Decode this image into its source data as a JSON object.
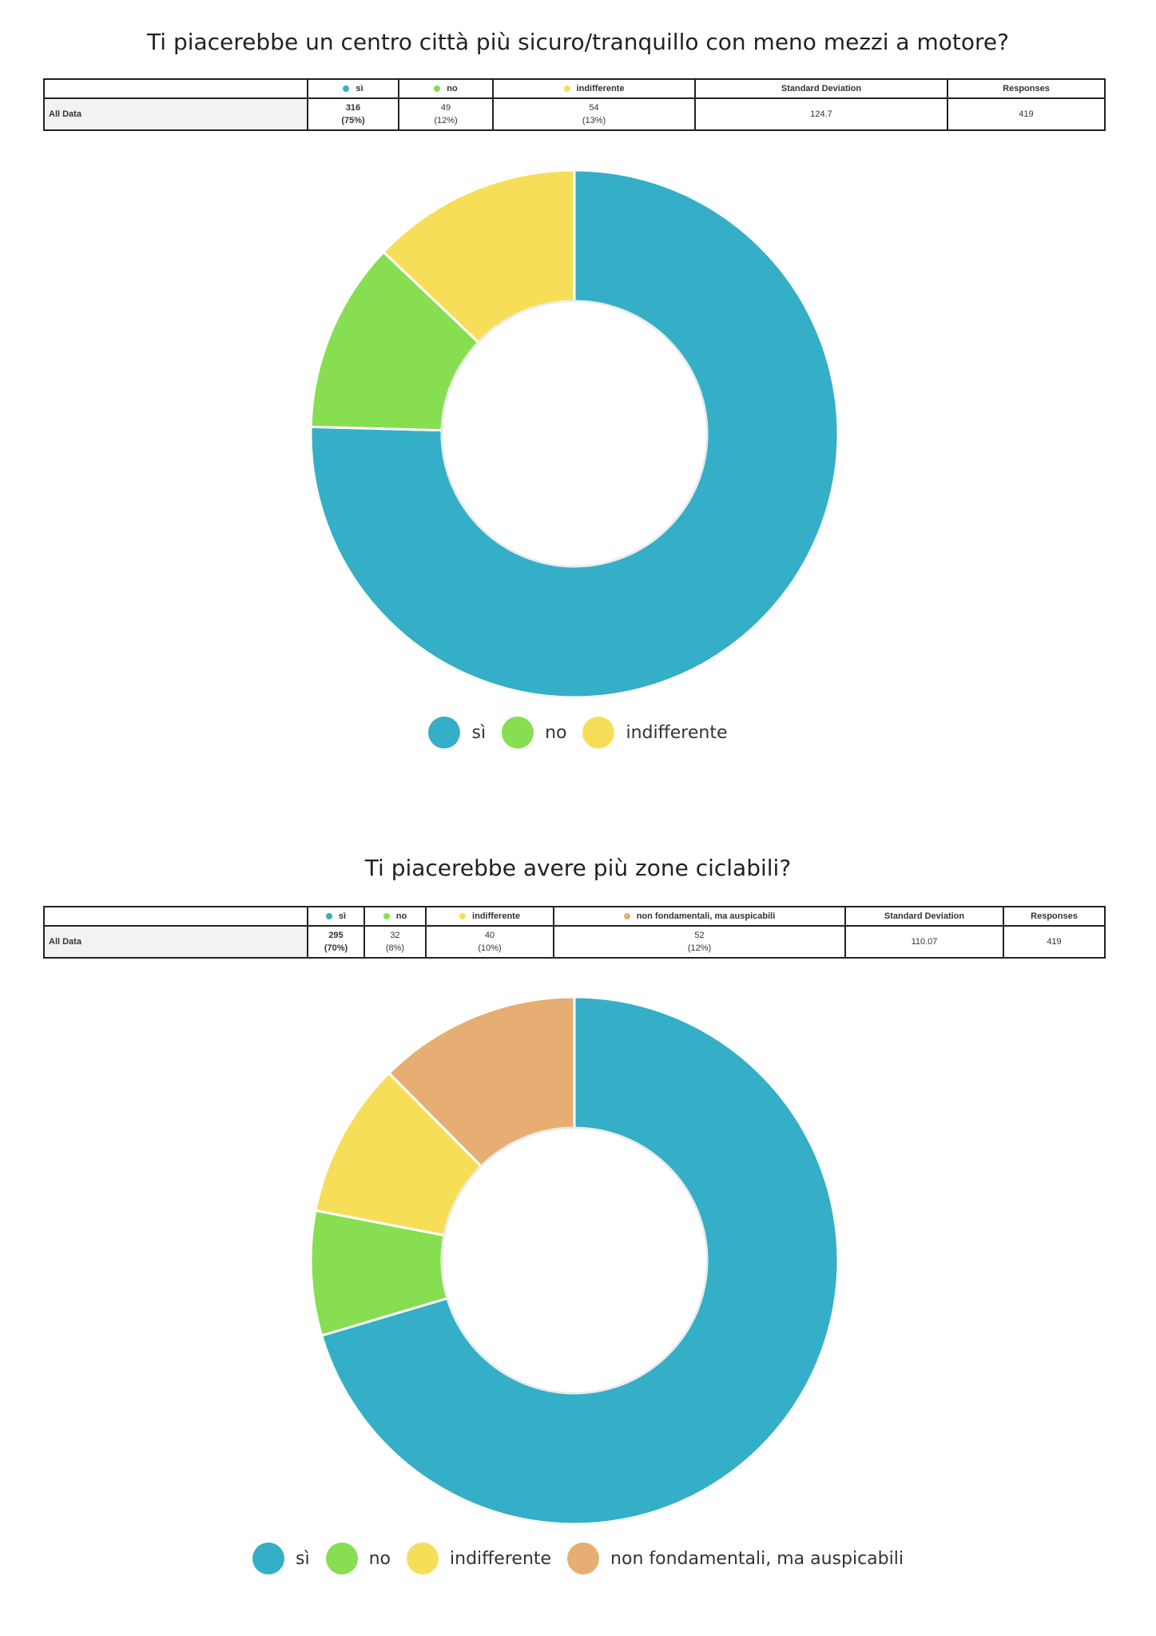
{
  "colors": {
    "si": "#34afc7",
    "no": "#86de50",
    "indifferente": "#f7de58",
    "non_fondamentali": "#e6ae73"
  },
  "chart_data": [
    {
      "type": "pie",
      "title": "Ti piacerebbe un centro città più sicuro/tranquillo con meno mezzi a motore?",
      "row_label": "All Data",
      "categories": [
        "sì",
        "no",
        "indifferente"
      ],
      "values": [
        316,
        49,
        54
      ],
      "percentages": [
        "(75%)",
        "(12%)",
        "(13%)"
      ],
      "colors": [
        "#34afc7",
        "#86de50",
        "#f7de58"
      ],
      "std_label": "Standard Deviation",
      "std_value": "124.7",
      "responses_label": "Responses",
      "responses_value": "419",
      "legend": "bottom"
    },
    {
      "type": "pie",
      "title": "Ti piacerebbe avere più zone ciclabili?",
      "row_label": "All Data",
      "categories": [
        "sì",
        "no",
        "indifferente",
        "non fondamentali, ma auspicabili"
      ],
      "values": [
        295,
        32,
        40,
        52
      ],
      "percentages": [
        "(70%)",
        "(8%)",
        "(10%)",
        "(12%)"
      ],
      "colors": [
        "#34afc7",
        "#86de50",
        "#f7de58",
        "#e6ae73"
      ],
      "std_label": "Standard Deviation",
      "std_value": "110.07",
      "responses_label": "Responses",
      "responses_value": "419",
      "legend": "bottom"
    }
  ]
}
